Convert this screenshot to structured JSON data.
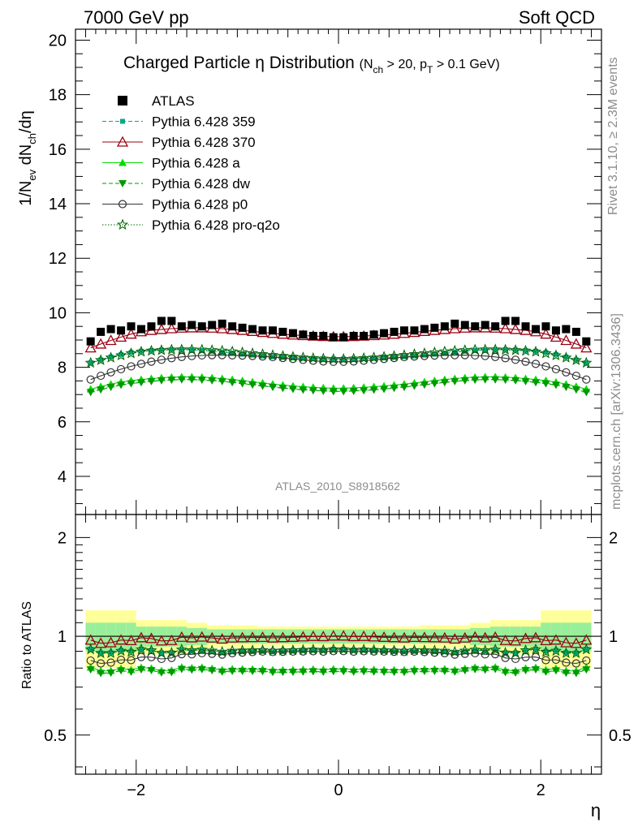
{
  "header": {
    "left": "7000 GeV pp",
    "right": "Soft QCD"
  },
  "side_labels": {
    "rivet": "Rivet 3.1.10, ≥ 2.3M events",
    "mcplots": "mcplots.cern.ch [arXiv:1306.3436]"
  },
  "watermark": "ATLAS_2010_S8918562",
  "chart_data": {
    "type": "scatter",
    "title": "Charged Particle η Distribution",
    "title_cut": "(N_ch > 20, p_T > 0.1 GeV)",
    "xlabel": "η",
    "ylabel": "1/N_ev dN_ch/dη",
    "ratio_ylabel": "Ratio to ATLAS",
    "xlim": [
      -2.6,
      2.6
    ],
    "ylim": [
      2.6,
      20.4
    ],
    "ratio_ylim": [
      0.38,
      2.35
    ],
    "ratio_log": true,
    "x_ticks": [
      "−2",
      "0",
      "2"
    ],
    "y_ticks": [
      "4",
      "6",
      "8",
      "10",
      "12",
      "14",
      "16",
      "18",
      "20"
    ],
    "ratio_ticks": [
      "0.5",
      "1",
      "2"
    ],
    "legend_position": "top-left",
    "series": [
      {
        "name": "ATLAS",
        "color": "#000000",
        "marker": "square-filled",
        "line": "none"
      },
      {
        "name": "Pythia 6.428 359",
        "color": "#00aa88",
        "marker": "square-small",
        "line": "dashed"
      },
      {
        "name": "Pythia 6.428 370",
        "color": "#990011",
        "marker": "triangle-open",
        "line": "solid"
      },
      {
        "name": "Pythia 6.428 a",
        "color": "#00dd00",
        "marker": "triangle-filled",
        "line": "solid"
      },
      {
        "name": "Pythia 6.428 dw",
        "color": "#009900",
        "marker": "triangle-down-filled",
        "line": "dashed"
      },
      {
        "name": "Pythia 6.428 p0",
        "color": "#333333",
        "marker": "circle-open",
        "line": "solid"
      },
      {
        "name": "Pythia 6.428 pro-q2o",
        "color": "#006600",
        "marker": "star-open",
        "line": "dotted"
      }
    ],
    "eta_range": [
      -2.45,
      2.45
    ],
    "eta_bins": 50,
    "atlas_values": [
      8.95,
      9.3,
      9.4,
      9.35,
      9.5,
      9.4,
      9.5,
      9.7,
      9.7,
      9.5,
      9.55,
      9.5,
      9.55,
      9.6,
      9.5,
      9.45,
      9.4,
      9.35,
      9.35,
      9.3,
      9.25,
      9.2,
      9.15,
      9.15,
      9.1,
      9.1,
      9.15,
      9.15,
      9.2,
      9.25,
      9.3,
      9.35,
      9.35,
      9.4,
      9.45,
      9.5,
      9.6,
      9.55,
      9.5,
      9.55,
      9.5,
      9.7,
      9.7,
      9.5,
      9.4,
      9.5,
      9.35,
      9.4,
      9.3,
      8.95
    ],
    "model_ratio_means": {
      "Pythia 6.428 359": 0.91,
      "Pythia 6.428 370": 0.99,
      "Pythia 6.428 a": 0.84,
      "Pythia 6.428 dw": 0.83,
      "Pythia 6.428 p0": 0.9,
      "Pythia 6.428 pro-q2o": 0.92
    },
    "atlas_band_halfwidth_inner": [
      0.1,
      0.1,
      0.07,
      0.07,
      0.06,
      0.05,
      0.05,
      0.05,
      0.05,
      0.05
    ],
    "atlas_band_halfwidth_outer": [
      0.2,
      0.2,
      0.12,
      0.12,
      0.1,
      0.08,
      0.08,
      0.07,
      0.07,
      0.07
    ]
  }
}
